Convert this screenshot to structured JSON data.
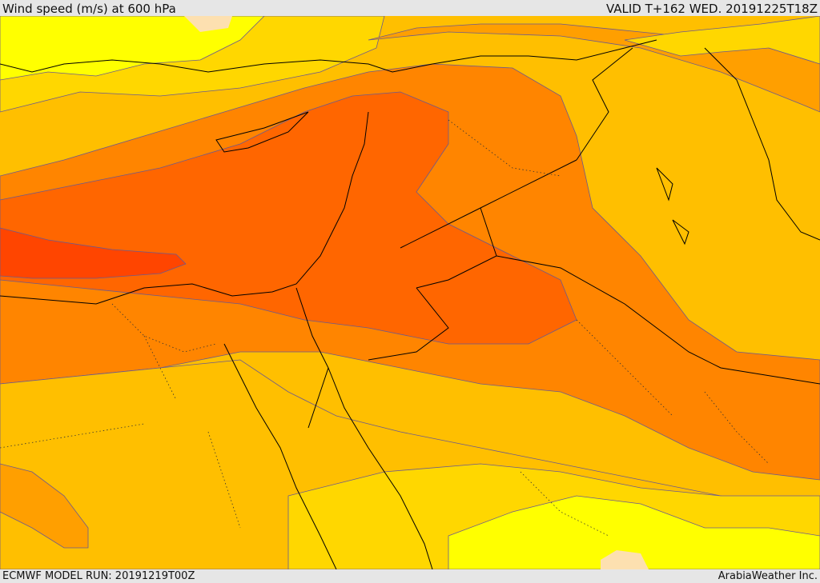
{
  "header": {
    "title": "Wind speed (m/s) at 600 hPa",
    "valid": "VALID T+162 WED. 20191225T18Z"
  },
  "footer": {
    "model_run": "ECMWF MODEL RUN: 20191219T00Z",
    "credit": "ArabiaWeather Inc."
  },
  "map": {
    "field": "wind speed",
    "level_hpa": 600,
    "region": "Eastern Mediterranean / Middle East",
    "colors": {
      "pale": "#fde0b0",
      "yellow": "#ffff00",
      "yellow_orange": "#ffd700",
      "light_orange": "#ffbf00",
      "orange": "#ff9f00",
      "dark_orange": "#ff8500",
      "red_orange": "#ff6600",
      "red": "#ff4500",
      "coastline": "#000000",
      "contour": "#6b5a8e"
    }
  }
}
